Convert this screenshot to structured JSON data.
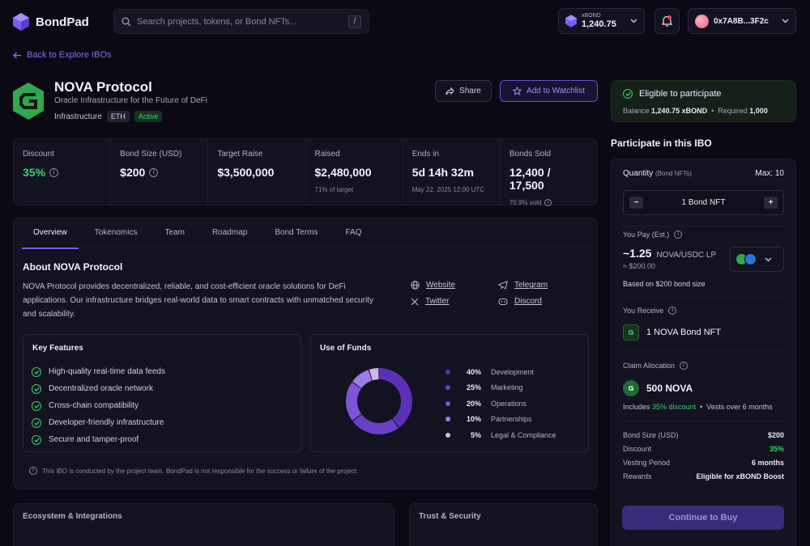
{
  "app": {
    "name": "BondPad"
  },
  "search": {
    "placeholder": "Search projects, tokens, or Bond NFTs...",
    "shortcut": "/"
  },
  "balance": {
    "label": "xBOND",
    "value": "1,240.75"
  },
  "wallet": {
    "address": "0x7A8B...3F2c"
  },
  "nav": {
    "back_label": "Back to Explore IBOs"
  },
  "project": {
    "name": "NOVA Protocol",
    "tagline": "Oracle Infrastructure for the Future of DeFi",
    "category": "Infrastructure",
    "chain": "ETH",
    "status": "Active",
    "share_label": "Share",
    "watchlist_label": "Add to Watchlist"
  },
  "eligibility": {
    "title": "Eligible to participate",
    "balance_label": "Balance",
    "balance_value": "1,240.75 xBOND",
    "required_label": "Required",
    "required_value": "1,000"
  },
  "stats": [
    {
      "label": "Discount",
      "value": "35%",
      "sub": ""
    },
    {
      "label": "Bond Size (USD)",
      "value": "$200",
      "sub": ""
    },
    {
      "label": "Target Raise",
      "value": "$3,500,000",
      "sub": ""
    },
    {
      "label": "Raised",
      "value": "$2,480,000",
      "sub": "71% of target"
    },
    {
      "label": "Ends in",
      "value": "5d 14h 32m",
      "sub": "May 22, 2025 12:00 UTC"
    },
    {
      "label": "Bonds Sold",
      "value": "12,400 / 17,500",
      "sub": "70.9% sold"
    }
  ],
  "tabs": [
    "Overview",
    "Tokenomics",
    "Team",
    "Roadmap",
    "Bond Terms",
    "FAQ"
  ],
  "about": {
    "title": "About NOVA Protocol",
    "body": "NOVA Protocol provides decentralized, reliable, and cost-efficient oracle solutions for DeFi applications. Our infrastructure bridges real-world data to smart contracts with unmatched security and scalability.",
    "links": {
      "website": "Website",
      "telegram": "Telegram",
      "twitter": "Twitter",
      "discord": "Discord"
    }
  },
  "features": {
    "title": "Key Features",
    "items": [
      "High-quality real-time data feeds",
      "Decentralized oracle network",
      "Cross-chain compatibility",
      "Developer-friendly infrastructure",
      "Secure and tamper-proof"
    ]
  },
  "funds": {
    "title": "Use of Funds",
    "items": [
      {
        "pct": "40%",
        "value": 40,
        "label": "Development",
        "color": "#5b2fb8"
      },
      {
        "pct": "25%",
        "value": 25,
        "label": "Marketing",
        "color": "#6a3fc8"
      },
      {
        "pct": "20%",
        "value": 20,
        "label": "Operations",
        "color": "#7c55d6"
      },
      {
        "pct": "10%",
        "value": 10,
        "label": "Partnerships",
        "color": "#9b7ce6"
      },
      {
        "pct": "5%",
        "value": 5,
        "label": "Legal & Compliance",
        "color": "#c9b8f2"
      }
    ]
  },
  "disclaimer": "This IBO is conducted by the project team. BondPad is not responsible for the success or failure of the project.",
  "sections": {
    "ecosystem": "Ecosystem & Integrations",
    "trust": "Trust & Security"
  },
  "participate": {
    "title": "Participate in this IBO",
    "quantity_label": "Quantity",
    "quantity_unit": "(Bond NFTs)",
    "max_label": "Max: 10",
    "quantity_value": "1 Bond NFT",
    "minus": "−",
    "plus": "+",
    "pay_label": "You Pay (Est.)",
    "pay_amount": "~1.25",
    "pay_token": "NOVA/USDC LP",
    "pay_usd": "≈ $200.00",
    "pay_basis": "Based on $200 bond size",
    "receive_label": "You Receive",
    "receive_value": "1 NOVA Bond NFT",
    "claim_label": "Claim Allocation",
    "claim_value": "500 NOVA",
    "claim_prefix": "Includes",
    "claim_discount": "35% discount",
    "claim_vest": "Vests over 6 months",
    "summary": [
      {
        "label": "Bond Size (USD)",
        "value": "$200"
      },
      {
        "label": "Discount",
        "value": "35%"
      },
      {
        "label": "Vesting Period",
        "value": "6 months"
      },
      {
        "label": "Rewards",
        "value": "Eligible for xBOND Boost"
      }
    ],
    "cta": "Continue to Buy"
  }
}
